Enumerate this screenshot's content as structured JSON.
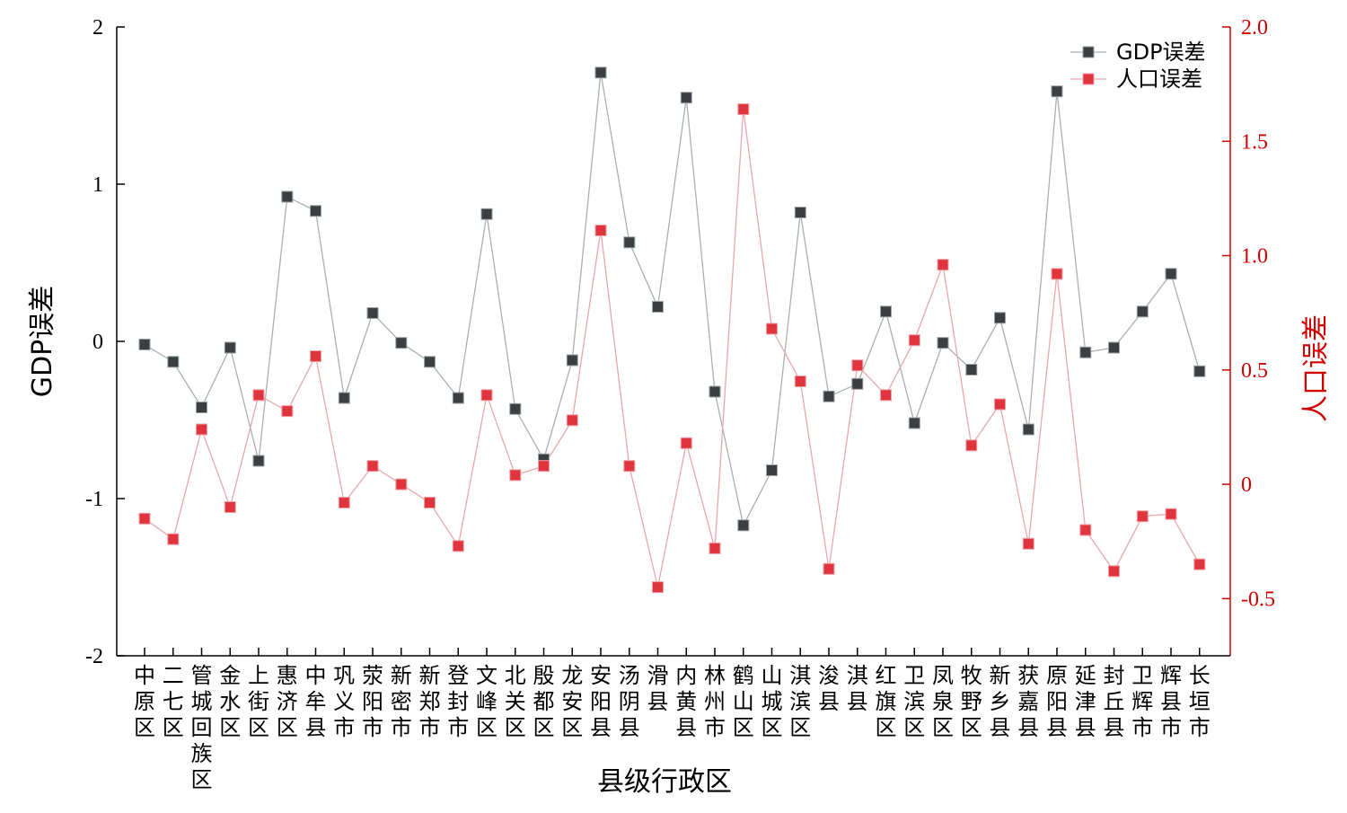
{
  "chart_data": {
    "type": "line",
    "xlabel": "县级行政区",
    "ylabel_left": "GDP误差",
    "ylabel_right": "人口误差",
    "ylim_left": [
      -2,
      2
    ],
    "ylim_right": [
      -0.75,
      2.0
    ],
    "yticks_left": [
      "2",
      "1",
      "0",
      "-1",
      "-2"
    ],
    "yticks_right": [
      "2.0",
      "1.5",
      "1.0",
      "0.5",
      "0",
      "-0.5"
    ],
    "ytick_values_left": [
      2,
      1,
      0,
      -1,
      -2
    ],
    "ytick_values_right": [
      2.0,
      1.5,
      1.0,
      0.5,
      0,
      -0.5
    ],
    "legend_position": "top-right",
    "categories": [
      "中原区",
      "二七区",
      "管城回族区",
      "金水区",
      "上街区",
      "惠济区",
      "中牟县",
      "巩义市",
      "荥阳市",
      "新密市",
      "新郑市",
      "登封市",
      "文峰区",
      "北关区",
      "殷都区",
      "龙安区",
      "安阳县",
      "汤阴县",
      "滑县",
      "内黄县",
      "林州市",
      "鹤山区",
      "山城区",
      "淇滨区",
      "浚县",
      "淇县",
      "红旗区",
      "卫滨区",
      "凤泉区",
      "牧野区",
      "新乡县",
      "获嘉县",
      "原阳县",
      "延津县",
      "封丘县",
      "卫辉市",
      "辉县市",
      "长垣市"
    ],
    "series": [
      {
        "name": "GDP误差",
        "axis": "left",
        "color": "#3b3f42",
        "line_color": "#a8b0b4",
        "values": [
          -0.02,
          -0.13,
          -0.42,
          -0.04,
          -0.76,
          0.92,
          0.83,
          -0.36,
          0.18,
          -0.01,
          -0.13,
          -0.36,
          0.81,
          -0.43,
          -0.75,
          -0.12,
          1.71,
          0.63,
          0.22,
          1.55,
          -0.32,
          -1.17,
          -0.82,
          0.82,
          -0.35,
          -0.27,
          0.19,
          -0.52,
          -0.01,
          -0.18,
          0.15,
          -0.56,
          1.59,
          -0.07,
          -0.04,
          0.19,
          0.43,
          -0.19
        ]
      },
      {
        "name": "人口误差",
        "axis": "right",
        "color": "#e0353f",
        "line_color": "#e9a7ac",
        "values": [
          -0.15,
          -0.24,
          0.24,
          -0.1,
          0.39,
          0.32,
          0.56,
          -0.08,
          0.08,
          0.0,
          -0.08,
          -0.27,
          0.39,
          0.04,
          0.08,
          0.28,
          1.11,
          0.08,
          -0.45,
          0.18,
          -0.28,
          1.64,
          0.68,
          0.45,
          -0.37,
          0.52,
          0.39,
          0.63,
          0.96,
          0.17,
          0.35,
          -0.26,
          0.92,
          -0.2,
          -0.38,
          -0.14,
          -0.13,
          -0.35
        ]
      }
    ]
  }
}
